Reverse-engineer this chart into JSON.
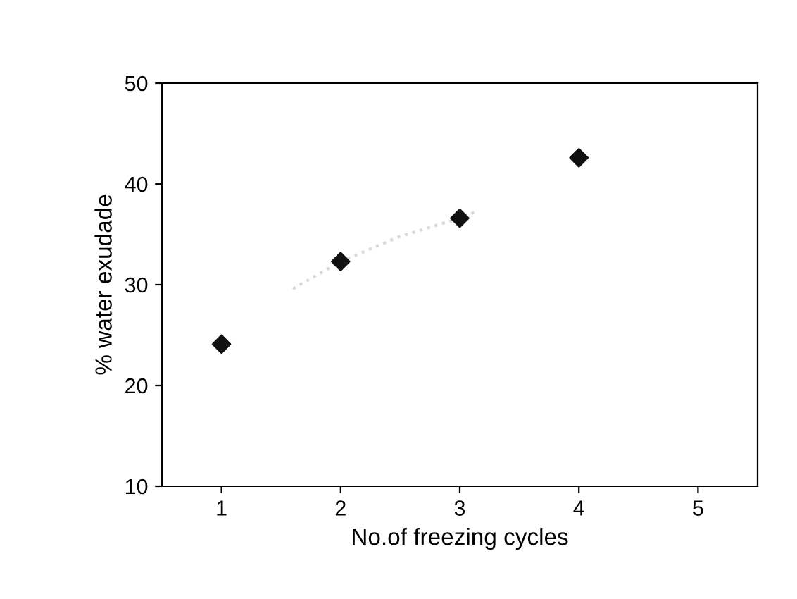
{
  "chart_data": {
    "type": "scatter",
    "xlabel": "No.of freezing cycles",
    "ylabel": "% water exudade",
    "x": [
      1,
      2,
      3,
      4
    ],
    "series": [
      {
        "color": "#111111",
        "marker": "diamond",
        "values": [
          24.1,
          32.3,
          36.6,
          42.6
        ]
      },
      {
        "type": "line",
        "color": "#d8d8d8",
        "line_style": "dotted",
        "x": [
          1.6,
          2,
          2.5,
          3,
          3.15
        ],
        "values": [
          29.6,
          32.3,
          34.8,
          36.6,
          37.3
        ]
      }
    ],
    "xlim": [
      0.5,
      5.5
    ],
    "xticks": [
      1,
      2,
      3,
      4,
      5
    ],
    "ylim": [
      10,
      50
    ],
    "yticks": [
      10,
      20,
      30,
      40,
      50
    ],
    "grid": false,
    "legend": false
  }
}
